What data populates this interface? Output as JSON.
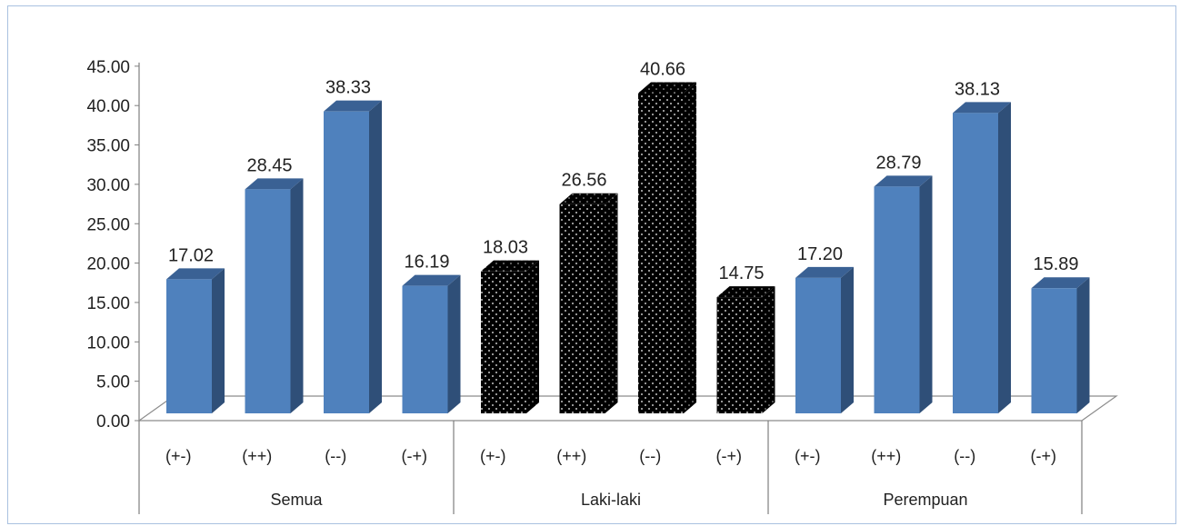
{
  "chart_data": {
    "type": "bar",
    "style": "3d-clustered-column",
    "ylim": [
      0,
      45
    ],
    "y_ticks": [
      "0.00",
      "5.00",
      "10.00",
      "15.00",
      "20.00",
      "25.00",
      "30.00",
      "35.00",
      "40.00",
      "45.00"
    ],
    "groups": [
      {
        "name": "Semua",
        "pattern": "solid",
        "categories": [
          "(+-)",
          "(++)",
          "(--)",
          "(-+)"
        ],
        "values": [
          17.02,
          28.45,
          38.33,
          16.19
        ],
        "labels": [
          "17.02",
          "28.45",
          "38.33",
          "16.19"
        ]
      },
      {
        "name": "Laki-laki",
        "pattern": "dotted-black",
        "categories": [
          "(+-)",
          "(++)",
          "(--)",
          "(-+)"
        ],
        "values": [
          18.03,
          26.56,
          40.66,
          14.75
        ],
        "labels": [
          "18.03",
          "26.56",
          "40.66",
          "14.75"
        ]
      },
      {
        "name": "Perempuan",
        "pattern": "solid",
        "categories": [
          "(+-)",
          "(++)",
          "(--)",
          "(-+)"
        ],
        "values": [
          17.2,
          28.79,
          38.13,
          15.89
        ],
        "labels": [
          "17.20",
          "28.79",
          "38.13",
          "15.89"
        ]
      }
    ],
    "colors": {
      "bar_front": "#4f81bd",
      "bar_side": "#2f4f78",
      "bar_top": "#3a6194",
      "pattern_bg": "#000000",
      "pattern_dot": "#ffffff",
      "axis": "#7f7f7f",
      "floor": "#8c8c8c"
    },
    "grid": false,
    "legend": "none"
  }
}
